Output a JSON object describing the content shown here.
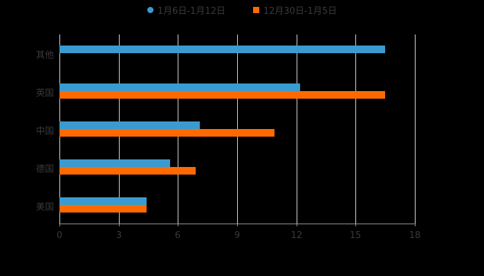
{
  "legend": [
    {
      "label": "1月6日-1月12日",
      "color": "#3a9bd1",
      "shape": "circle"
    },
    {
      "label": "12月30日-1月5日",
      "color": "#ff6a00",
      "shape": "square"
    }
  ],
  "chart_data": {
    "type": "bar",
    "orientation": "horizontal",
    "title": "",
    "xlabel": "",
    "ylabel": "",
    "categories": [
      "其他",
      "英国",
      "中国",
      "德国",
      "美国"
    ],
    "series": [
      {
        "name": "1月6日-1月12日",
        "color": "#3a9bd1",
        "values": [
          16.5,
          12.2,
          7.1,
          5.6,
          4.4
        ]
      },
      {
        "name": "12月30日-1月5日",
        "color": "#ff6a00",
        "values": [
          null,
          16.5,
          10.9,
          6.9,
          4.4
        ]
      }
    ],
    "xlim": [
      0,
      18
    ],
    "xticks": [
      0,
      3,
      6,
      9,
      12,
      15,
      18
    ],
    "grid": true,
    "legend_position": "top"
  }
}
